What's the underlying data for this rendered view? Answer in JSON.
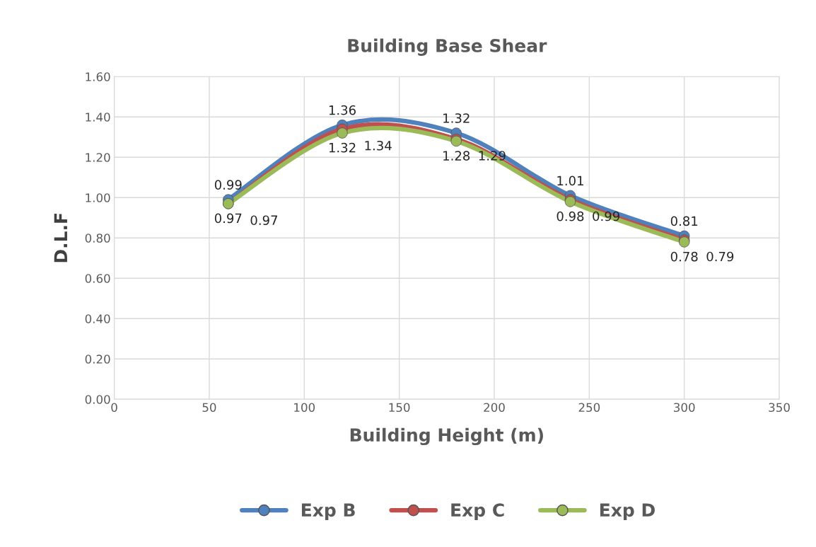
{
  "chart_data": {
    "type": "line",
    "title": "Building Base Shear",
    "xlabel": "Building Height (m)",
    "ylabel": "D.L.F",
    "x": [
      60,
      120,
      180,
      240,
      300
    ],
    "series": [
      {
        "name": "Exp B",
        "color": "#4f81bd",
        "values": [
          0.99,
          1.36,
          1.32,
          1.01,
          0.81
        ]
      },
      {
        "name": "Exp C",
        "color": "#c0504d",
        "values": [
          0.97,
          1.34,
          1.29,
          0.99,
          0.79
        ]
      },
      {
        "name": "Exp D",
        "color": "#9bbb59",
        "values": [
          0.97,
          1.32,
          1.28,
          0.98,
          0.78
        ]
      }
    ],
    "xlim": [
      0,
      350
    ],
    "xticks": [
      0,
      50,
      100,
      150,
      200,
      250,
      300,
      350
    ],
    "ylim": [
      0,
      1.6
    ],
    "yticks": [
      {
        "value": 0,
        "label": "0.00"
      },
      {
        "value": 0.2,
        "label": "0.20"
      },
      {
        "value": 0.4,
        "label": "0.40"
      },
      {
        "value": 0.6,
        "label": "0.60"
      },
      {
        "value": 0.8,
        "label": "0.80"
      },
      {
        "value": 1.0,
        "label": "1.00"
      },
      {
        "value": 1.2,
        "label": "1.20"
      },
      {
        "value": 1.4,
        "label": "1.40"
      },
      {
        "value": 1.6,
        "label": "1.60"
      }
    ],
    "grid": true,
    "legend": "bottom",
    "marker": "circle",
    "line_style": "solid",
    "data_labels": true
  }
}
